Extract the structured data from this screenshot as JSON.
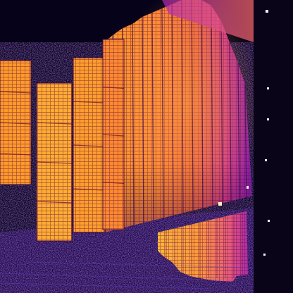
{
  "image": {
    "kind": "thermal-infrared-photo",
    "subject": "solar-panel-array",
    "palette": {
      "background": "#06021a",
      "ground": "#1e0a4a",
      "noise": "#5a2aa8",
      "cold_panel": "#7a1fa8",
      "mid_panel": "#d2307a",
      "warm_panel": "#f07a2a",
      "hot_panel": "#ffb43a",
      "grid_line": "#3a0a50",
      "dark_frame": "#0a0418",
      "light_spot": "#f5f0ff"
    }
  }
}
